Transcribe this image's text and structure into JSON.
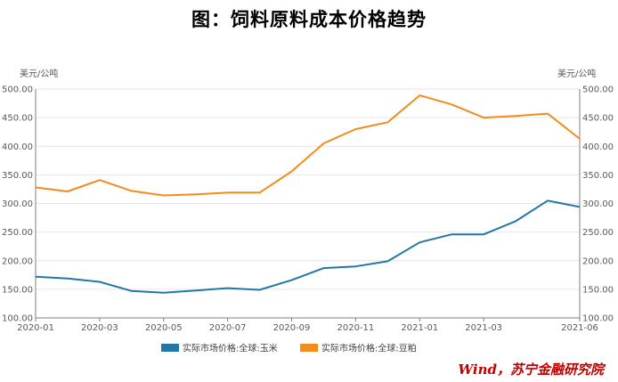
{
  "title": "图：饲料原料成本价格趋势",
  "source": "Wind，苏宁金融研究院",
  "colors": {
    "corn": "#2277a6",
    "soy": "#f28c1a",
    "axis": "#7f7f7f",
    "grid": "#e6e6e6"
  },
  "chart_data": {
    "type": "line",
    "left_unit": "美元/公吨",
    "right_unit": "美元/公吨",
    "ylim": [
      100,
      500
    ],
    "yticks": [
      "100.00",
      "150.00",
      "200.00",
      "250.00",
      "300.00",
      "350.00",
      "400.00",
      "450.00",
      "500.00"
    ],
    "x": [
      "2020-01",
      "2020-02",
      "2020-03",
      "2020-04",
      "2020-05",
      "2020-06",
      "2020-07",
      "2020-08",
      "2020-09",
      "2020-10",
      "2020-11",
      "2020-12",
      "2021-01",
      "2021-02",
      "2021-03",
      "2021-04",
      "2021-05",
      "2021-06"
    ],
    "xtick_labels": [
      "2020-01",
      "2020-03",
      "2020-05",
      "2020-07",
      "2020-09",
      "2020-11",
      "2021-01",
      "2021-03",
      "2021-06"
    ],
    "grid": "horizontal",
    "legend_position": "bottom",
    "series": [
      {
        "name": "实际市场价格:全球:玉米",
        "color": "#2277a6",
        "values": [
          172,
          169,
          163,
          147,
          144,
          148,
          152,
          149,
          166,
          187,
          190,
          199,
          232,
          246,
          246,
          269,
          305,
          294
        ]
      },
      {
        "name": "实际市场价格:全球:豆粕",
        "color": "#f28c1a",
        "values": [
          328,
          321,
          341,
          322,
          314,
          316,
          319,
          319,
          356,
          405,
          430,
          442,
          489,
          473,
          450,
          453,
          457,
          413
        ]
      }
    ]
  }
}
